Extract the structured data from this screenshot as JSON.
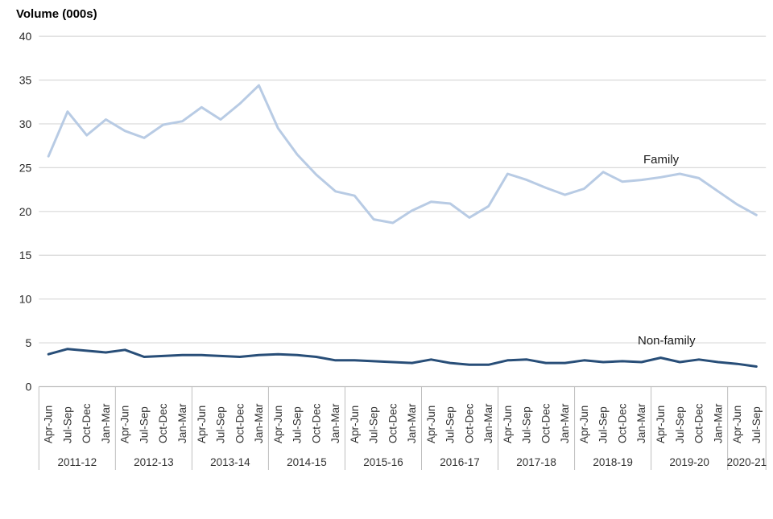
{
  "chart_data": {
    "type": "line",
    "title": "Volume (000s)",
    "xlabel": "",
    "ylabel": "Volume (000s)",
    "grid": "horizontal",
    "legend_position": "inline-end-of-line-labels",
    "y_axis": {
      "min": 0,
      "max": 40,
      "step": 5,
      "ticks": [
        0,
        5,
        10,
        15,
        20,
        25,
        30,
        35,
        40
      ]
    },
    "x_axis": {
      "quarter_cycle": [
        "Apr-Jun",
        "Jul-Sep",
        "Oct-Dec",
        "Jan-Mar"
      ],
      "years": [
        {
          "label": "2011-12",
          "quarters": 4
        },
        {
          "label": "2012-13",
          "quarters": 4
        },
        {
          "label": "2013-14",
          "quarters": 4
        },
        {
          "label": "2014-15",
          "quarters": 4
        },
        {
          "label": "2015-16",
          "quarters": 4
        },
        {
          "label": "2016-17",
          "quarters": 4
        },
        {
          "label": "2017-18",
          "quarters": 4
        },
        {
          "label": "2018-19",
          "quarters": 4
        },
        {
          "label": "2019-20",
          "quarters": 4
        },
        {
          "label": "2020-21",
          "quarters": 2
        }
      ]
    },
    "series": [
      {
        "name": "Family",
        "color": "#b8cbe4",
        "values": [
          26.3,
          31.4,
          28.7,
          30.5,
          29.2,
          28.4,
          29.9,
          30.3,
          31.9,
          30.5,
          32.3,
          34.4,
          29.5,
          26.5,
          24.2,
          22.3,
          21.8,
          19.1,
          18.7,
          20.1,
          21.1,
          20.9,
          19.3,
          20.6,
          24.3,
          23.6,
          22.7,
          21.9,
          22.6,
          24.5,
          23.4,
          23.6,
          23.9,
          24.3,
          23.8,
          22.3,
          20.8,
          19.6
        ]
      },
      {
        "name": "Non-family",
        "color": "#284e78",
        "values": [
          3.7,
          4.3,
          4.1,
          3.9,
          4.2,
          3.4,
          3.5,
          3.6,
          3.6,
          3.5,
          3.4,
          3.6,
          3.7,
          3.6,
          3.4,
          3.0,
          3.0,
          2.9,
          2.8,
          2.7,
          3.1,
          2.7,
          2.5,
          2.5,
          3.0,
          3.1,
          2.7,
          2.7,
          3.0,
          2.8,
          2.9,
          2.8,
          3.3,
          2.8,
          3.1,
          2.8,
          2.6,
          2.3
        ]
      }
    ],
    "style_colors": {
      "gridline": "#d9d9d9",
      "axis_line": "#bfbfbf",
      "band_separator": "#bfbfbf"
    }
  }
}
